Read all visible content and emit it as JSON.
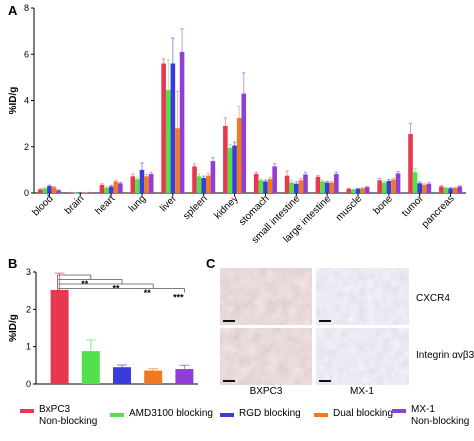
{
  "panels": {
    "a": "A",
    "b": "B",
    "c": "C"
  },
  "legend": [
    {
      "label": "BxPC3\nNon-blocking",
      "color": "#e8384f"
    },
    {
      "label": "AMD3100 blocking",
      "color": "#52e04c"
    },
    {
      "label": "RGD blocking",
      "color": "#3a3bdb"
    },
    {
      "label": "Dual blocking",
      "color": "#f07a24"
    },
    {
      "label": "MX-1\nNon-blocking",
      "color": "#8f3fd6"
    }
  ],
  "chart_data": [
    {
      "type": "bar",
      "panel": "A",
      "ylabel": "%ID/g",
      "ylim": [
        0,
        8
      ],
      "yticks": [
        0,
        2,
        4,
        6,
        8
      ],
      "categories": [
        "blood",
        "brain",
        "heart",
        "lung",
        "liver",
        "spleen",
        "kidney",
        "stomach",
        "small intestine",
        "large intestine",
        "muscle",
        "bone",
        "tumor",
        "pancreas"
      ],
      "series": [
        {
          "name": "BxPC3 Non-blocking",
          "color": "#e8384f",
          "values": [
            0.15,
            0.02,
            0.35,
            0.72,
            5.6,
            1.15,
            2.9,
            0.82,
            0.75,
            0.7,
            0.18,
            0.55,
            2.55,
            0.28
          ],
          "errors": [
            0.03,
            0.01,
            0.05,
            0.1,
            0.2,
            0.1,
            0.35,
            0.08,
            0.2,
            0.05,
            0.03,
            0.08,
            0.45,
            0.04
          ]
        },
        {
          "name": "AMD3100 blocking",
          "color": "#52e04c",
          "values": [
            0.2,
            0.01,
            0.22,
            0.6,
            4.45,
            0.72,
            1.95,
            0.55,
            0.45,
            0.5,
            0.15,
            0.45,
            0.9,
            0.22
          ],
          "errors": [
            0.03,
            0.01,
            0.04,
            0.08,
            1.3,
            0.1,
            0.15,
            0.06,
            0.1,
            0.06,
            0.02,
            0.06,
            0.15,
            0.03
          ]
        },
        {
          "name": "RGD blocking",
          "color": "#3a3bdb",
          "values": [
            0.3,
            0.01,
            0.28,
            1.0,
            5.6,
            0.65,
            2.05,
            0.5,
            0.4,
            0.45,
            0.18,
            0.52,
            0.42,
            0.2
          ],
          "errors": [
            0.04,
            0.01,
            0.05,
            0.3,
            1.1,
            0.08,
            0.15,
            0.06,
            0.08,
            0.05,
            0.02,
            0.06,
            0.06,
            0.03
          ]
        },
        {
          "name": "Dual blocking",
          "color": "#f07a24",
          "values": [
            0.25,
            0.02,
            0.5,
            0.72,
            2.8,
            0.75,
            3.25,
            0.6,
            0.55,
            0.45,
            0.2,
            0.58,
            0.35,
            0.22
          ],
          "errors": [
            0.03,
            0.01,
            0.05,
            0.08,
            1.6,
            0.1,
            0.5,
            0.07,
            0.08,
            0.05,
            0.03,
            0.06,
            0.05,
            0.03
          ]
        },
        {
          "name": "MX-1 Non-blocking",
          "color": "#8f3fd6",
          "values": [
            0.12,
            0.02,
            0.42,
            0.82,
            6.1,
            1.38,
            4.3,
            1.15,
            0.8,
            0.82,
            0.25,
            0.85,
            0.4,
            0.28
          ],
          "errors": [
            0.02,
            0.01,
            0.05,
            0.08,
            1.0,
            0.15,
            0.9,
            0.12,
            0.1,
            0.08,
            0.03,
            0.08,
            0.05,
            0.03
          ]
        }
      ]
    },
    {
      "type": "bar",
      "panel": "B",
      "ylabel": "%ID/g",
      "ylim": [
        0,
        3
      ],
      "yticks": [
        0,
        1,
        2,
        3
      ],
      "categories": [
        "BxPC3 Non-blocking",
        "AMD3100 blocking",
        "RGD blocking",
        "Dual blocking",
        "MX-1 Non-blocking"
      ],
      "values": [
        2.52,
        0.88,
        0.45,
        0.36,
        0.4
      ],
      "errors": [
        0.45,
        0.3,
        0.06,
        0.05,
        0.1
      ],
      "significance": [
        "**",
        "**",
        "**",
        "***"
      ]
    }
  ],
  "micrograph": {
    "row_labels": [
      "CXCR4",
      "Integrin αvβ3"
    ],
    "col_labels": [
      "BXPC3",
      "MX-1"
    ]
  }
}
